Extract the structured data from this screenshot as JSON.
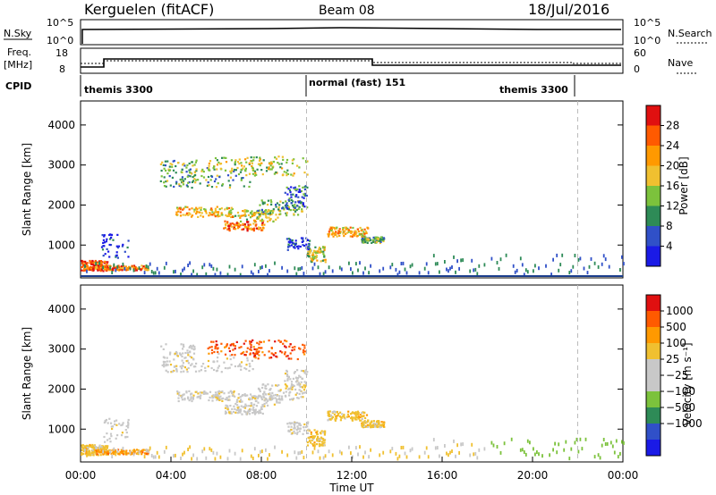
{
  "header": {
    "station": "Kerguelen (fitACF)",
    "beam": "Beam 08",
    "date": "18/Jul/2016"
  },
  "strip": {
    "nsky_label": "N.Sky",
    "nsky_ticks": [
      "10^5",
      "10^0"
    ],
    "nsearch_label": "N.Search",
    "freq_label_1": "Freq.",
    "freq_label_2": "[MHz]",
    "freq_ticks": [
      "18",
      "8"
    ],
    "nave_ticks": [
      "60",
      "0"
    ],
    "nave_label": "Nave",
    "cpid_label": "CPID",
    "cpid_segments": [
      {
        "label": "themis 3300",
        "start_h": 0,
        "end_h": 10
      },
      {
        "label": "normal (fast) 151",
        "start_h": 10,
        "end_h": 22
      },
      {
        "label": "themis 3300",
        "start_h": 22,
        "end_h": 24
      }
    ]
  },
  "colors": {
    "power": [
      "#1a1ae6",
      "#3050c8",
      "#2e8b57",
      "#7cc23c",
      "#f0c030",
      "#ff9900",
      "#ff5a00",
      "#e01010"
    ],
    "velocity": [
      "#e01010",
      "#ff5a00",
      "#ff9900",
      "#f0c030",
      "#c8c8c8",
      "#c8c8c8",
      "#7cc23c",
      "#2e8b57",
      "#3050c8",
      "#1a1ae6"
    ]
  },
  "chart_data": [
    {
      "type": "heatmap",
      "name": "power",
      "ylabel": "Slant Range [km]",
      "ylim": [
        180,
        4600
      ],
      "yticks": [
        "1000",
        "2000",
        "3000",
        "4000"
      ],
      "xlim": [
        0,
        24
      ],
      "colorbar_label": "Power [dB]",
      "colorbar_ticks": [
        "4",
        "8",
        "12",
        "16",
        "20",
        "24",
        "28"
      ],
      "dashed_times_h": [
        10,
        22
      ]
    },
    {
      "type": "heatmap",
      "name": "velocity",
      "ylabel": "Slant Range [km]",
      "ylim": [
        180,
        4600
      ],
      "yticks": [
        "1000",
        "2000",
        "3000",
        "4000"
      ],
      "xlim": [
        0,
        24
      ],
      "xticks": [
        "00:00",
        "04:00",
        "08:00",
        "12:00",
        "16:00",
        "20:00",
        "00:00"
      ],
      "xlabel": "Time UT",
      "colorbar_label": "Velocity [m s⁻¹]",
      "colorbar_ticks": [
        "1000",
        "500",
        "100",
        "25",
        "−25",
        "−100",
        "−500",
        "−1000"
      ],
      "dashed_times_h": [
        10,
        22
      ]
    }
  ]
}
